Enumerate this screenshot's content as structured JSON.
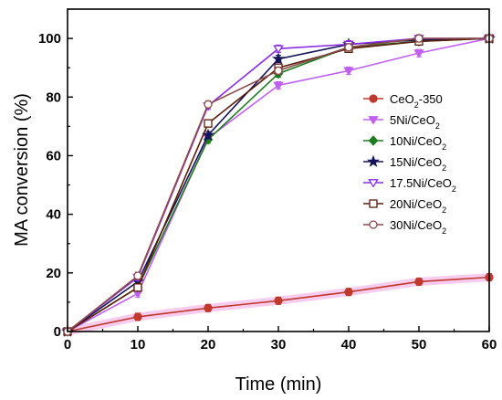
{
  "chart_data": {
    "type": "line",
    "xlabel": "Time (min)",
    "ylabel": "MA conversion (%)",
    "xlim": [
      0,
      60
    ],
    "ylim": [
      0,
      110
    ],
    "x_ticks": [
      "0",
      "10",
      "20",
      "30",
      "40",
      "50",
      "60"
    ],
    "y_ticks": [
      "0",
      "20",
      "40",
      "60",
      "80",
      "100"
    ],
    "grid": false,
    "legend_position": "center-right",
    "x": [
      0,
      10,
      20,
      30,
      40,
      50,
      60
    ],
    "series": [
      {
        "name": "CeO2-350",
        "label_main": "CeO",
        "label_sub": "2",
        "label_tail": "-350",
        "color": "#c0392b",
        "marker": "filled-circle",
        "values": [
          0,
          5,
          8,
          10.5,
          13.5,
          17,
          18.5
        ]
      },
      {
        "name": "5Ni/CeO2",
        "label_main": "5Ni/CeO",
        "label_sub": "2",
        "label_tail": "",
        "color": "#c060f0",
        "marker": "filled-triangle-down",
        "values": [
          0,
          13,
          66,
          84,
          89,
          95,
          100
        ]
      },
      {
        "name": "10Ni/CeO2",
        "label_main": "10Ni/CeO",
        "label_sub": "2",
        "label_tail": "",
        "color": "#1e7a1e",
        "marker": "filled-diamond",
        "values": [
          0,
          15,
          65.5,
          88,
          97,
          99,
          100
        ]
      },
      {
        "name": "15Ni/CeO2",
        "label_main": "15Ni/CeO",
        "label_sub": "2",
        "label_tail": "",
        "color": "#14145a",
        "marker": "filled-star",
        "values": [
          0,
          17,
          67,
          93,
          98,
          99.5,
          100
        ]
      },
      {
        "name": "17.5Ni/CeO2",
        "label_main": "17.5Ni/CeO",
        "label_sub": "2",
        "label_tail": "",
        "color": "#8a2be2",
        "marker": "open-triangle-down",
        "values": [
          0,
          18.5,
          77,
          96.5,
          98,
          100,
          100
        ]
      },
      {
        "name": "20Ni/CeO2",
        "label_main": "20Ni/CeO",
        "label_sub": "2",
        "label_tail": "",
        "color": "#5a1e0a",
        "marker": "open-square",
        "values": [
          0,
          15,
          71,
          90,
          96.5,
          99,
          100
        ]
      },
      {
        "name": "30Ni/CeO2",
        "label_main": "30Ni/CeO",
        "label_sub": "2",
        "label_tail": "",
        "color": "#8b4c4c",
        "marker": "open-circle",
        "values": [
          0,
          19,
          77.5,
          89,
          97,
          100,
          100
        ]
      }
    ]
  }
}
